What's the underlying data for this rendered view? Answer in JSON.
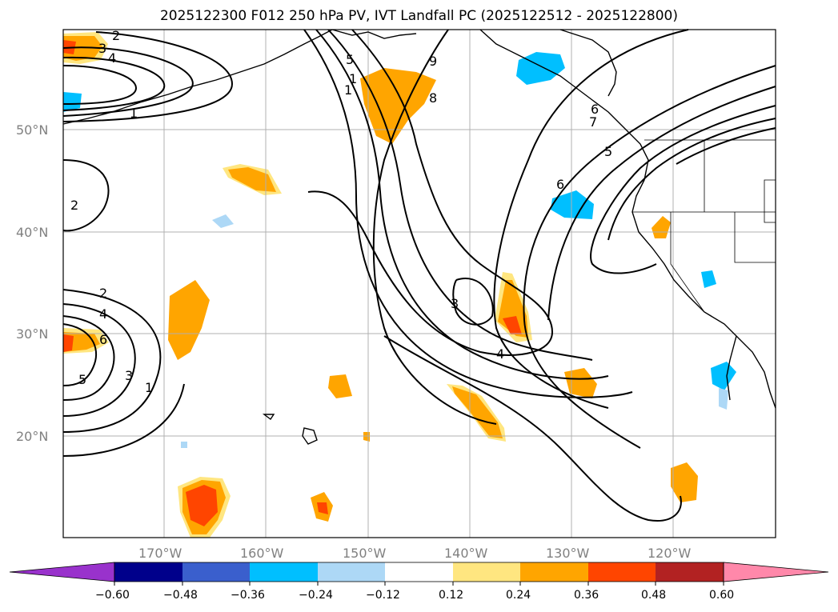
{
  "title": "2025122300 F012 250 hPa PV, IVT Landfall PC (2025122512 - 2025122800)",
  "lat_labels": [
    "50°N",
    "40°N",
    "30°N",
    "20°N"
  ],
  "lon_labels": [
    "170°W",
    "160°W",
    "150°W",
    "140°W",
    "130°W",
    "120°W"
  ],
  "colorbar": {
    "ticks": [
      "−0.60",
      "−0.48",
      "−0.36",
      "−0.24",
      "−0.12",
      "0.12",
      "0.24",
      "0.36",
      "0.48",
      "0.60"
    ],
    "colors": [
      "#9932cc",
      "#00008b",
      "#3a5fcd",
      "#00bfff",
      "#add8f6",
      "#ffffff",
      "#ffe680",
      "#ffa500",
      "#ff4500",
      "#b22222",
      "#ff88aa"
    ]
  },
  "contour_labels": [
    "2",
    "3",
    "4",
    "1",
    "2",
    "2",
    "4",
    "6",
    "5",
    "3",
    "1",
    "5",
    "6",
    "9",
    "8",
    "7",
    "1",
    "3",
    "5",
    "6",
    "4",
    "1"
  ],
  "colors": {
    "positive": "#ffa500",
    "positive_light": "#ffe680",
    "strong": "#ff4500",
    "negative": "#00bfff",
    "negative_light": "#add8f6"
  }
}
